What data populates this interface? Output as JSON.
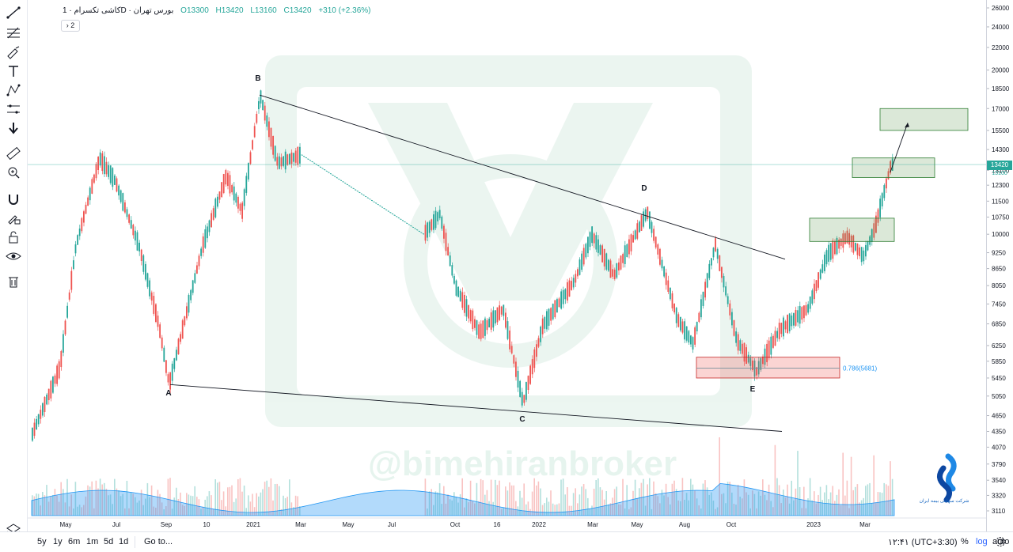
{
  "legend": {
    "symbol": "کاشی تکسرام",
    "interval": "1D",
    "exchange": "بورس تهران",
    "open": "O13300",
    "high": "H13420",
    "low": "L13160",
    "close": "C13420",
    "change": "+310 (+2.36%)",
    "collapse_label": "› 2"
  },
  "watermark": "@bimehiranbroker",
  "broker_logo_text": "شرکت سهامی بیمه ایران",
  "last_price": {
    "value": "13420",
    "sub": "13100"
  },
  "fib_label": "0.786(5681)",
  "bottom_bar": {
    "ranges": [
      "5y",
      "1y",
      "6m",
      "1m",
      "5d",
      "1d"
    ],
    "goto": "Go to...",
    "time": "۱۲:۴۱ (UTC+3:30)",
    "percent": "%",
    "log": "log",
    "auto": "auto"
  },
  "toolbar_icons": [
    "trend-line-icon",
    "fib-icon",
    "brush-icon",
    "text-icon",
    "pattern-icon",
    "projection-icon",
    "arrow-down-icon",
    "ruler-icon",
    "zoom-icon",
    "magnet-icon",
    "lock-draw-icon",
    "lock-icon",
    "eye-icon",
    "trash-icon",
    "layers-icon"
  ],
  "chart_data": {
    "type": "candlestick",
    "price_ticks": [
      26000,
      24000,
      22000,
      20000,
      18500,
      17000,
      15500,
      14300,
      13100,
      12300,
      11500,
      10750,
      10000,
      9250,
      8650,
      8050,
      7450,
      6850,
      6250,
      5850,
      5450,
      5050,
      4650,
      4350,
      4070,
      3790,
      3540,
      3320,
      3110
    ],
    "time_labels": [
      "May",
      "Jul",
      "Sep",
      "10",
      "2021",
      "Mar",
      "May",
      "Jul",
      "Oct",
      "16",
      "2022",
      "Mar",
      "May",
      "Aug",
      "Oct",
      "2023",
      "Mar"
    ],
    "points": {
      "A": {
        "price": 5300
      },
      "B": {
        "price": 18000
      },
      "C": {
        "price": 4900
      },
      "D": {
        "price": 11000
      },
      "E": {
        "price": 5600
      }
    },
    "last_close": 13420,
    "fib_level": {
      "ratio": 0.786,
      "price": 5681
    },
    "zones": [
      {
        "type": "target",
        "low": 15500,
        "high": 17000
      },
      {
        "type": "target",
        "low": 12700,
        "high": 13800
      },
      {
        "type": "target",
        "low": 9700,
        "high": 10700
      },
      {
        "type": "support",
        "low": 5450,
        "high": 5950
      }
    ]
  }
}
